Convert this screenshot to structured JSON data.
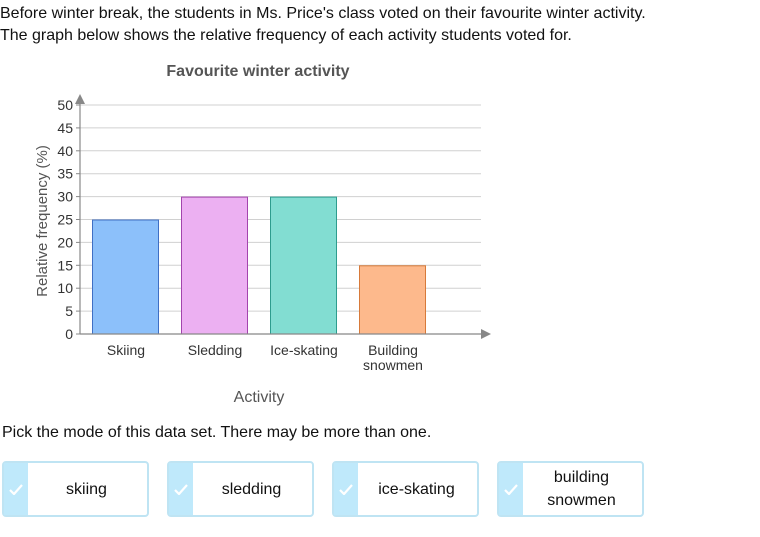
{
  "intro": {
    "line1": "Before winter break, the students in Ms. Price's class voted on their favourite winter activity.",
    "line2": "The graph below shows the relative frequency of each activity students voted for."
  },
  "chart_data": {
    "type": "bar",
    "title": "Favourite winter activity",
    "xlabel": "Activity",
    "ylabel": "Relative frequency (%)",
    "ylim": [
      0,
      50
    ],
    "yticks": [
      0,
      5,
      10,
      15,
      20,
      25,
      30,
      35,
      40,
      45,
      50
    ],
    "grid": true,
    "categories": [
      {
        "lines": [
          "Skiing"
        ],
        "value": 25,
        "fill": "#8cc0fa",
        "stroke": "#3f6fc4"
      },
      {
        "lines": [
          "Sledding"
        ],
        "value": 30,
        "fill": "#ecb0f2",
        "stroke": "#a344ad"
      },
      {
        "lines": [
          "Ice-skating"
        ],
        "value": 30,
        "fill": "#82ddd2",
        "stroke": "#2d9c8e"
      },
      {
        "lines": [
          "Building",
          "snowmen"
        ],
        "value": 15,
        "fill": "#fdb98c",
        "stroke": "#d77a3a"
      }
    ]
  },
  "question": {
    "prompt": "Pick the mode of this data set. There may be more than one."
  },
  "choices": [
    {
      "lines": [
        "skiing"
      ]
    },
    {
      "lines": [
        "sledding"
      ]
    },
    {
      "lines": [
        "ice-skating"
      ]
    },
    {
      "lines": [
        "building",
        "snowmen"
      ]
    }
  ],
  "colors": {
    "choice_border": "#bfe4f3",
    "check_bg": "#bfe9fb",
    "check_mark": "#ffffff",
    "grid": "#d0d0d0",
    "axis": "#888888"
  }
}
